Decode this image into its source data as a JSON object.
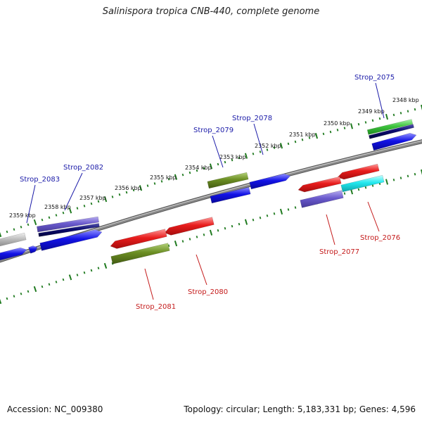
{
  "title": "Salinispora tropica CNB-440, complete genome",
  "footer": {
    "accession": "Accession: NC_009380",
    "stats": "Topology: circular; Length: 5,183,331 bp; Genes: 4,596"
  },
  "colors": {
    "backbone": "#888888",
    "forward_label": "#1a1aa8",
    "reverse_label": "#c41a1a",
    "tick": "#1f7a1f",
    "red": "#e81c1c",
    "blue": "#1212e6",
    "navy": "#0b0b6e",
    "slate": "#6a5acd",
    "olive": "#6b8e23",
    "green": "#3ec43e",
    "cyan": "#22e8ee",
    "grey": "#bdbdbd"
  },
  "kbp_labels": [
    "2348 kbp",
    "2349 kbp",
    "2350 kbp",
    "2351 kbp",
    "2352 kbp",
    "2353 kbp",
    "2354 kbp",
    "2355 kbp",
    "2356 kbp",
    "2357 kbp",
    "2358 kbp",
    "2359 kbp"
  ],
  "gene_labels": {
    "forward": [
      "Strop_2075",
      "Strop_2078",
      "Strop_2079",
      "Strop_2082",
      "Strop_2083"
    ],
    "reverse": [
      "Strop_2076",
      "Strop_2077",
      "Strop_2080",
      "Strop_2081"
    ]
  }
}
